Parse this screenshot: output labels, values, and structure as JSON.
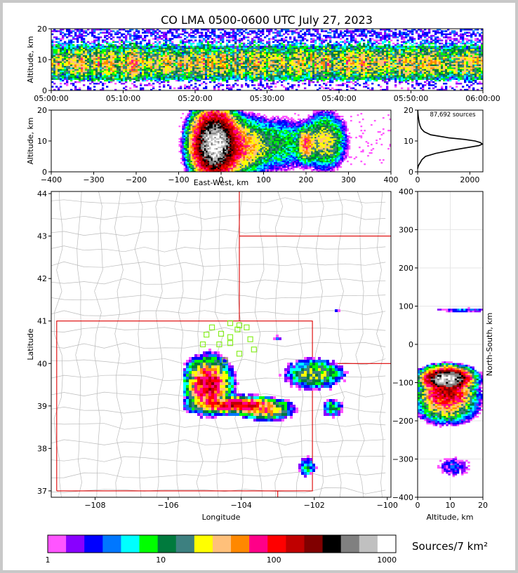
{
  "title": "CO LMA 0500-0600 UTC July 27, 2023",
  "colors": {
    "state_border": "#dd0000",
    "county_border": "#bbbbbb",
    "station_marker": "#88ee22",
    "histogram_line": "#000000"
  },
  "colorbar": {
    "label": "Sources/7 km²",
    "scale": "log",
    "range": [
      1,
      1200
    ],
    "tick_labels": [
      "1",
      "10",
      "100",
      "1000"
    ],
    "tick_values": [
      1,
      10,
      100,
      1000
    ],
    "colors": [
      "#ff55ff",
      "#8800ff",
      "#0000ff",
      "#0077ff",
      "#00ffff",
      "#00ff00",
      "#007a3d",
      "#3d8080",
      "#ffff00",
      "#ffc07a",
      "#ff8800",
      "#ff0088",
      "#ff0000",
      "#c00000",
      "#800000",
      "#000000",
      "#808080",
      "#c0c0c0",
      "#ffffff"
    ]
  },
  "chart_data": [
    {
      "id": "time-altitude",
      "type": "heatmap",
      "xlabel": "",
      "ylabel": "Altitude, km",
      "xlim": [
        "05:00:00",
        "06:00:00"
      ],
      "ylim": [
        0,
        20
      ],
      "x_tick_labels": [
        "05:00:00",
        "05:10:00",
        "05:20:00",
        "05:30:00",
        "05:40:00",
        "05:50:00",
        "06:00:00"
      ],
      "y_tick_labels": [
        "0",
        "10",
        "20"
      ],
      "y_tick_values": [
        0,
        10,
        20
      ],
      "peak_altitude_km": 9
    },
    {
      "id": "ew-altitude",
      "type": "heatmap",
      "xlabel": "East-West, km",
      "ylabel": "Altitude, km",
      "xlim": [
        -400,
        400
      ],
      "ylim": [
        0,
        20
      ],
      "x_tick_labels": [
        "−400",
        "−300",
        "−200",
        "−100",
        "0",
        "100",
        "200",
        "300",
        "400"
      ],
      "x_tick_values": [
        -400,
        -300,
        -200,
        -100,
        0,
        100,
        200,
        300,
        400
      ],
      "y_tick_labels": [
        "0",
        "10",
        "20"
      ],
      "y_tick_values": [
        0,
        10,
        20
      ],
      "clusters": [
        {
          "x": -15,
          "z": 9,
          "sx": 22,
          "sz": 4.5,
          "peak": 1000
        },
        {
          "x": 40,
          "z": 8,
          "sx": 30,
          "sz": 4,
          "peak": 60
        },
        {
          "x": 120,
          "z": 9,
          "sx": 50,
          "sz": 4,
          "peak": 12
        },
        {
          "x": 200,
          "z": 9,
          "sx": 10,
          "sz": 2.5,
          "peak": 60
        },
        {
          "x": 245,
          "z": 10,
          "sx": 22,
          "sz": 4,
          "peak": 30
        }
      ]
    },
    {
      "id": "altitude-histogram",
      "type": "line",
      "annotation": "87,692 sources",
      "xlim": [
        0,
        2500
      ],
      "ylim": [
        0,
        20
      ],
      "x_tick_labels": [
        "0",
        "2000"
      ],
      "x_tick_values": [
        0,
        2000
      ],
      "y_tick_labels": [
        "0",
        "10",
        "20"
      ],
      "y_tick_values": [
        0,
        10,
        20
      ],
      "series": [
        {
          "altitude_km": [
            1,
            2,
            3,
            4,
            5,
            6,
            7,
            8,
            8.5,
            9,
            9.5,
            10,
            10.5,
            11,
            12,
            13,
            14,
            15,
            16,
            17,
            18,
            19,
            20
          ],
          "count": [
            0,
            30,
            100,
            170,
            300,
            700,
            1300,
            2000,
            2350,
            2480,
            2400,
            2200,
            1800,
            1200,
            500,
            250,
            140,
            90,
            60,
            40,
            25,
            12,
            5
          ]
        }
      ]
    },
    {
      "id": "plan-view",
      "type": "heatmap",
      "xlabel": "Longitude",
      "ylabel": "Latitude",
      "xlim": [
        -109.2,
        -99.9
      ],
      "ylim": [
        36.85,
        44.05
      ],
      "x_tick_labels": [
        "−108",
        "−106",
        "−104",
        "−102",
        "−100"
      ],
      "x_tick_values": [
        -108,
        -106,
        -104,
        -102,
        -100
      ],
      "y_tick_labels": [
        "37",
        "38",
        "39",
        "40",
        "41",
        "42",
        "43",
        "44"
      ],
      "y_tick_values": [
        37,
        38,
        39,
        40,
        41,
        42,
        43,
        44
      ],
      "stations": [
        {
          "lon": -104.3,
          "lat": 40.95
        },
        {
          "lon": -104.8,
          "lat": 40.85
        },
        {
          "lon": -104.05,
          "lat": 40.9
        },
        {
          "lon": -103.85,
          "lat": 40.85
        },
        {
          "lon": -104.1,
          "lat": 40.8
        },
        {
          "lon": -104.95,
          "lat": 40.68
        },
        {
          "lon": -104.55,
          "lat": 40.7
        },
        {
          "lon": -104.3,
          "lat": 40.62
        },
        {
          "lon": -103.75,
          "lat": 40.57
        },
        {
          "lon": -105.05,
          "lat": 40.45
        },
        {
          "lon": -104.6,
          "lat": 40.45
        },
        {
          "lon": -104.3,
          "lat": 40.48
        },
        {
          "lon": -103.65,
          "lat": 40.33
        },
        {
          "lon": -104.05,
          "lat": 40.23
        },
        {
          "lon": -104.45,
          "lat": 40.07
        }
      ],
      "clusters": [
        {
          "lon": -104.9,
          "lat": 39.5,
          "slon": 0.25,
          "slat": 0.25,
          "peak": 150
        },
        {
          "lon": -104.1,
          "lat": 39.02,
          "slon": 0.5,
          "slat": 0.08,
          "peak": 150
        },
        {
          "lon": -103.3,
          "lat": 38.85,
          "slon": 0.3,
          "slat": 0.08,
          "peak": 40
        },
        {
          "lon": -102.0,
          "lat": 39.75,
          "slon": 0.35,
          "slat": 0.15,
          "peak": 25
        },
        {
          "lon": -101.5,
          "lat": 38.95,
          "slon": 0.15,
          "slat": 0.1,
          "peak": 10
        },
        {
          "lon": -102.2,
          "lat": 37.55,
          "slon": 0.12,
          "slat": 0.12,
          "peak": 8
        },
        {
          "lon": -103.0,
          "lat": 40.6,
          "slon": 0.05,
          "slat": 0.03,
          "peak": 6
        },
        {
          "lon": -101.4,
          "lat": 41.22,
          "slon": 0.05,
          "slat": 0.02,
          "peak": 6
        }
      ]
    },
    {
      "id": "altitude-ns",
      "type": "heatmap",
      "xlabel": "Altitude, km",
      "ylabel": "North-South, km",
      "xlim": [
        0,
        20
      ],
      "ylim": [
        -400,
        400
      ],
      "x_tick_labels": [
        "0",
        "10",
        "20"
      ],
      "x_tick_values": [
        0,
        10,
        20
      ],
      "y_tick_labels": [
        "400",
        "300",
        "200",
        "100",
        "0",
        "−100",
        "−200",
        "−300",
        "−400"
      ],
      "y_tick_values": [
        400,
        300,
        200,
        100,
        0,
        -100,
        -200,
        -300,
        -400
      ],
      "clusters": [
        {
          "z": 9,
          "y": -90,
          "sz": 3,
          "sy": 12,
          "peak": 1000
        },
        {
          "z": 9,
          "y": -130,
          "sz": 3.5,
          "sy": 14,
          "peak": 150
        },
        {
          "z": 9,
          "y": -160,
          "sz": 4,
          "sy": 20,
          "peak": 40
        },
        {
          "z": 14,
          "y": 90,
          "sz": 5,
          "sy": 3,
          "peak": 4
        },
        {
          "z": 11,
          "y": -320,
          "sz": 3,
          "sy": 15,
          "peak": 3
        }
      ]
    }
  ]
}
